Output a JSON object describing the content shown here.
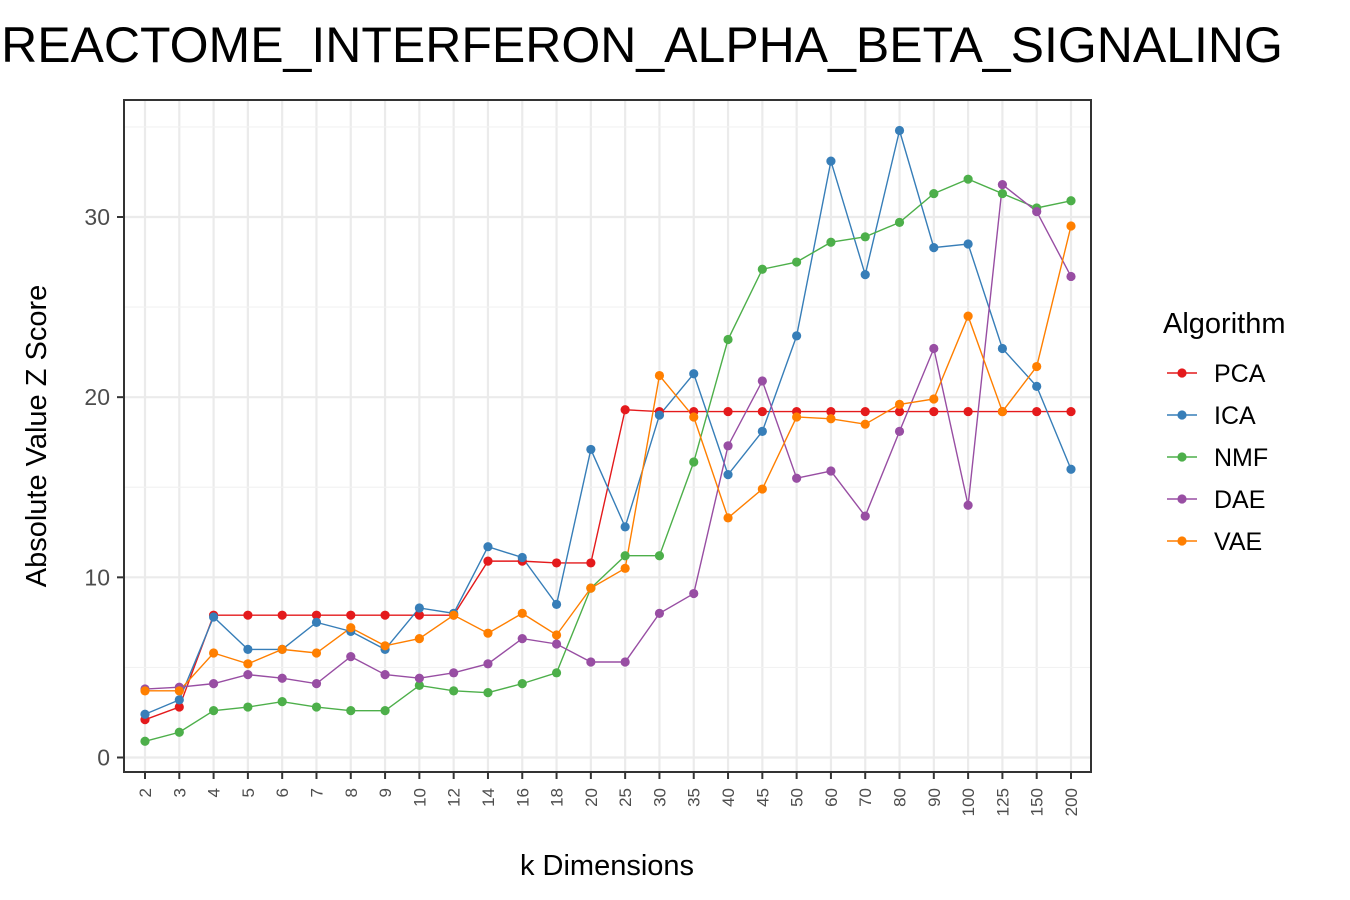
{
  "chart_data": {
    "type": "line",
    "title": "REACTOME_INTERFERON_ALPHA_BETA_SIGNALING",
    "xlabel": "k Dimensions",
    "ylabel": "Absolute Value Z Score",
    "ylim": [
      0,
      35
    ],
    "yticks": [
      0,
      10,
      20,
      30
    ],
    "grid": true,
    "legend_title": "Algorithm",
    "legend_position": "right",
    "categories": [
      "2",
      "3",
      "4",
      "5",
      "6",
      "7",
      "8",
      "9",
      "10",
      "12",
      "14",
      "16",
      "18",
      "20",
      "25",
      "30",
      "35",
      "40",
      "45",
      "50",
      "60",
      "70",
      "80",
      "90",
      "100",
      "125",
      "150",
      "200"
    ],
    "series": [
      {
        "name": "PCA",
        "color": "#e41a1c",
        "values": [
          2.1,
          2.8,
          7.9,
          7.9,
          7.9,
          7.9,
          7.9,
          7.9,
          7.9,
          7.9,
          10.9,
          10.9,
          10.8,
          10.8,
          19.3,
          19.2,
          19.2,
          19.2,
          19.2,
          19.2,
          19.2,
          19.2,
          19.2,
          19.2,
          19.2,
          19.2,
          19.2,
          19.2
        ]
      },
      {
        "name": "ICA",
        "color": "#377eb8",
        "values": [
          2.4,
          3.2,
          7.8,
          6.0,
          6.0,
          7.5,
          7.0,
          6.0,
          8.3,
          8.0,
          11.7,
          11.1,
          8.5,
          17.1,
          12.8,
          19.0,
          21.3,
          15.7,
          18.1,
          23.4,
          33.1,
          26.8,
          34.8,
          28.3,
          28.5,
          22.7,
          20.6,
          16.0
        ]
      },
      {
        "name": "NMF",
        "color": "#4daf4a",
        "values": [
          0.9,
          1.4,
          2.6,
          2.8,
          3.1,
          2.8,
          2.6,
          2.6,
          4.0,
          3.7,
          3.6,
          4.1,
          4.7,
          9.4,
          11.2,
          11.2,
          16.4,
          23.2,
          27.1,
          27.5,
          28.6,
          28.9,
          29.7,
          31.3,
          32.1,
          31.3,
          30.5,
          30.9
        ]
      },
      {
        "name": "DAE",
        "color": "#984ea3",
        "values": [
          3.8,
          3.9,
          4.1,
          4.6,
          4.4,
          4.1,
          5.6,
          4.6,
          4.4,
          4.7,
          5.2,
          6.6,
          6.3,
          5.3,
          5.3,
          8.0,
          9.1,
          17.3,
          20.9,
          15.5,
          15.9,
          13.4,
          18.1,
          22.7,
          14.0,
          31.8,
          30.3,
          26.7
        ]
      },
      {
        "name": "VAE",
        "color": "#ff7f00",
        "values": [
          3.7,
          3.7,
          5.8,
          5.2,
          6.0,
          5.8,
          7.2,
          6.2,
          6.6,
          7.9,
          6.9,
          8.0,
          6.8,
          9.4,
          10.5,
          21.2,
          18.9,
          13.3,
          14.9,
          18.9,
          18.8,
          18.5,
          19.6,
          19.9,
          24.5,
          19.2,
          21.7,
          29.5
        ]
      }
    ]
  }
}
